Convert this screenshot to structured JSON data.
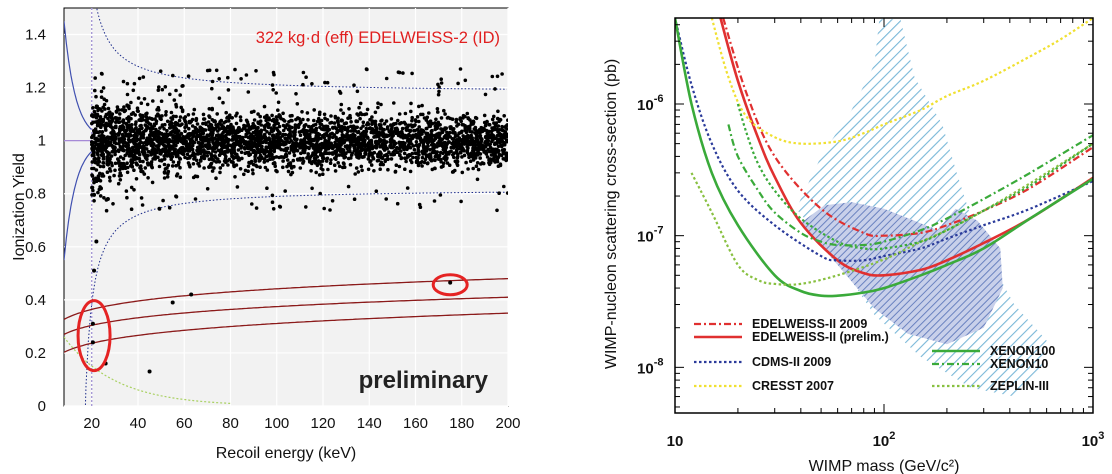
{
  "chart_data": [
    {
      "type": "scatter",
      "annotation": "322 kg·d (eff) EDELWEISS-2 (ID)",
      "watermark": "preliminary",
      "xlabel": "Recoil energy (keV)",
      "ylabel": "Ionization Yield",
      "xlim": [
        8,
        200
      ],
      "ylim": [
        0,
        1.5
      ],
      "xticks": [
        "20",
        "40",
        "60",
        "80",
        "100",
        "120",
        "140",
        "160",
        "180",
        "200"
      ],
      "yticks": [
        "0",
        "0.2",
        "0.4",
        "0.6",
        "0.8",
        "1",
        "1.2",
        "1.4"
      ],
      "grid": true,
      "electron_band": {
        "center": 1.0,
        "upper_edge": 1.18,
        "lower_edge": 0.82
      },
      "nuclear_recoil_band": {
        "center_at_20keV": 0.3,
        "center_at_200keV": 0.41,
        "upper_at_200keV": 0.48,
        "lower_at_200keV": 0.35
      },
      "threshold_keV": 20,
      "highlighted_events": [
        {
          "x": 20.5,
          "y": 0.31
        },
        {
          "x": 20.5,
          "y": 0.24
        },
        {
          "x": 175,
          "y": 0.465
        }
      ],
      "other_low_yield_events": [
        {
          "x": 21,
          "y": 0.51
        },
        {
          "x": 26,
          "y": 0.16
        },
        {
          "x": 45,
          "y": 0.13
        },
        {
          "x": 55,
          "y": 0.39
        },
        {
          "x": 63,
          "y": 0.42
        },
        {
          "x": 22,
          "y": 0.62
        },
        {
          "x": 24,
          "y": 0.82
        },
        {
          "x": 27,
          "y": 0.78
        }
      ],
      "colors": {
        "annotation": "#e02020",
        "points": "#000000",
        "band_dotted": "#1a2a8a",
        "nr_band": "#8b1a1a",
        "highlight": "#e52323",
        "background": "#f2f2f2",
        "grid": "#ffffff",
        "threshold": "#9a8ad0",
        "curve_left": "#4050b0",
        "lime_curve": "#a8d060"
      }
    },
    {
      "type": "line",
      "xlabel": "WIMP mass (GeV/c²)",
      "ylabel": "WIMP-nucleon scattering cross-section (pb)",
      "x_scale": "log",
      "y_scale": "log",
      "xlim": [
        10,
        1000
      ],
      "ylim": [
        4.5e-09,
        4.5e-06
      ],
      "xticks": [
        {
          "base": "10",
          "exp": ""
        },
        {
          "base": "10",
          "exp": "2"
        },
        {
          "base": "10",
          "exp": "3"
        }
      ],
      "yticks": [
        {
          "base": "10",
          "exp": "-6"
        },
        {
          "base": "10",
          "exp": "-7"
        },
        {
          "base": "10",
          "exp": "-8"
        }
      ],
      "legend_placement": "bottom",
      "series": [
        {
          "name": "EDELWEISS-II 2009",
          "color": "#e03030",
          "style": "dashdot",
          "x": [
            17,
            22,
            30,
            50,
            80,
            100,
            150,
            200,
            300,
            500,
            1000
          ],
          "y": [
            4.5e-06,
            1.2e-06,
            4e-07,
            1.6e-07,
            1.05e-07,
            1e-07,
            1.05e-07,
            1.2e-07,
            1.55e-07,
            2.3e-07,
            4.7e-07
          ]
        },
        {
          "name": "EDELWEISS-II (prelim.)",
          "color": "#e03030",
          "style": "solid",
          "x": [
            16.5,
            20,
            25,
            30,
            40,
            60,
            80,
            100,
            150,
            200,
            300,
            500,
            1000
          ],
          "y": [
            4.5e-06,
            1.5e-06,
            5.5e-07,
            2.8e-07,
            1.25e-07,
            6.5e-08,
            5.2e-08,
            5e-08,
            5.5e-08,
            6.5e-08,
            8.8e-08,
            1.35e-07,
            2.75e-07
          ]
        },
        {
          "name": "CDMS-II 2009",
          "color": "#2a3a9a",
          "style": "dotted",
          "x": [
            10,
            12,
            15,
            20,
            30,
            50,
            60,
            80,
            100,
            150,
            200,
            300,
            500,
            1000
          ],
          "y": [
            4.5e-06,
            1.4e-06,
            5e-07,
            2.2e-07,
            1.2e-07,
            7e-08,
            6.5e-08,
            6.5e-08,
            7e-08,
            8e-08,
            9.5e-08,
            1.2e-07,
            1.6e-07,
            2.6e-07
          ]
        },
        {
          "name": "CRESST 2007",
          "color": "#f0e030",
          "style": "dotted",
          "x": [
            15,
            18,
            22,
            30,
            40,
            60,
            80,
            100,
            150,
            200,
            300,
            500,
            700,
            1000
          ],
          "y": [
            4.5e-06,
            1.6e-06,
            8e-07,
            5.6e-07,
            5e-07,
            5.2e-07,
            6e-07,
            7e-07,
            9e-07,
            1.15e-06,
            1.5e-06,
            2.3e-06,
            3.1e-06,
            4.5e-06
          ]
        },
        {
          "name": "XENON100",
          "color": "#3aaa3a",
          "style": "solid",
          "x": [
            10,
            12,
            15,
            20,
            30,
            40,
            50,
            60,
            80,
            100,
            150,
            200,
            300,
            500,
            1000
          ],
          "y": [
            4.5e-06,
            1e-06,
            3e-07,
            1.2e-07,
            5e-08,
            3.8e-08,
            3.5e-08,
            3.5e-08,
            3.7e-08,
            4e-08,
            5e-08,
            6e-08,
            8e-08,
            1.35e-07,
            2.7e-07
          ]
        },
        {
          "name": "XENON10",
          "color": "#3aaa3a",
          "style": "dashdot",
          "x": [
            18,
            20,
            25,
            30,
            40,
            50,
            60,
            80,
            100,
            150,
            200,
            300,
            500,
            1000
          ],
          "y": [
            7e-07,
            4e-07,
            2.2e-07,
            1.5e-07,
            1.05e-07,
            9e-08,
            8.5e-08,
            8.5e-08,
            9e-08,
            1.1e-07,
            1.35e-07,
            1.9e-07,
            3e-07,
            5.8e-07
          ]
        },
        {
          "name": "ZEPLIN-III",
          "color": "#88c040",
          "style": "dotted",
          "x": [
            12,
            15,
            20,
            25,
            30,
            40,
            60,
            100,
            150,
            200,
            300,
            500,
            1000
          ],
          "y": [
            3e-07,
            1.5e-07,
            6e-08,
            4.6e-08,
            4.3e-08,
            4.3e-08,
            5e-08,
            6.6e-08,
            9e-08,
            1.1e-07,
            1.55e-07,
            2.5e-07,
            5e-07
          ]
        },
        {
          "name": "",
          "color": "#3aaa3a",
          "style": "dotted",
          "x": [
            20,
            22,
            25,
            30,
            40,
            60,
            80,
            100,
            150,
            200,
            300,
            500,
            1000
          ],
          "y": [
            1e-06,
            6e-07,
            3.5e-07,
            2.2e-07,
            1.35e-07,
            9e-08,
            8e-08,
            8e-08,
            9e-08,
            1.1e-07,
            1.55e-07,
            2.4e-07,
            5e-07
          ]
        }
      ],
      "colors": {
        "hatch_region": "#7ab8d8",
        "hatch_region_dense": "#5a7ab8"
      }
    }
  ]
}
